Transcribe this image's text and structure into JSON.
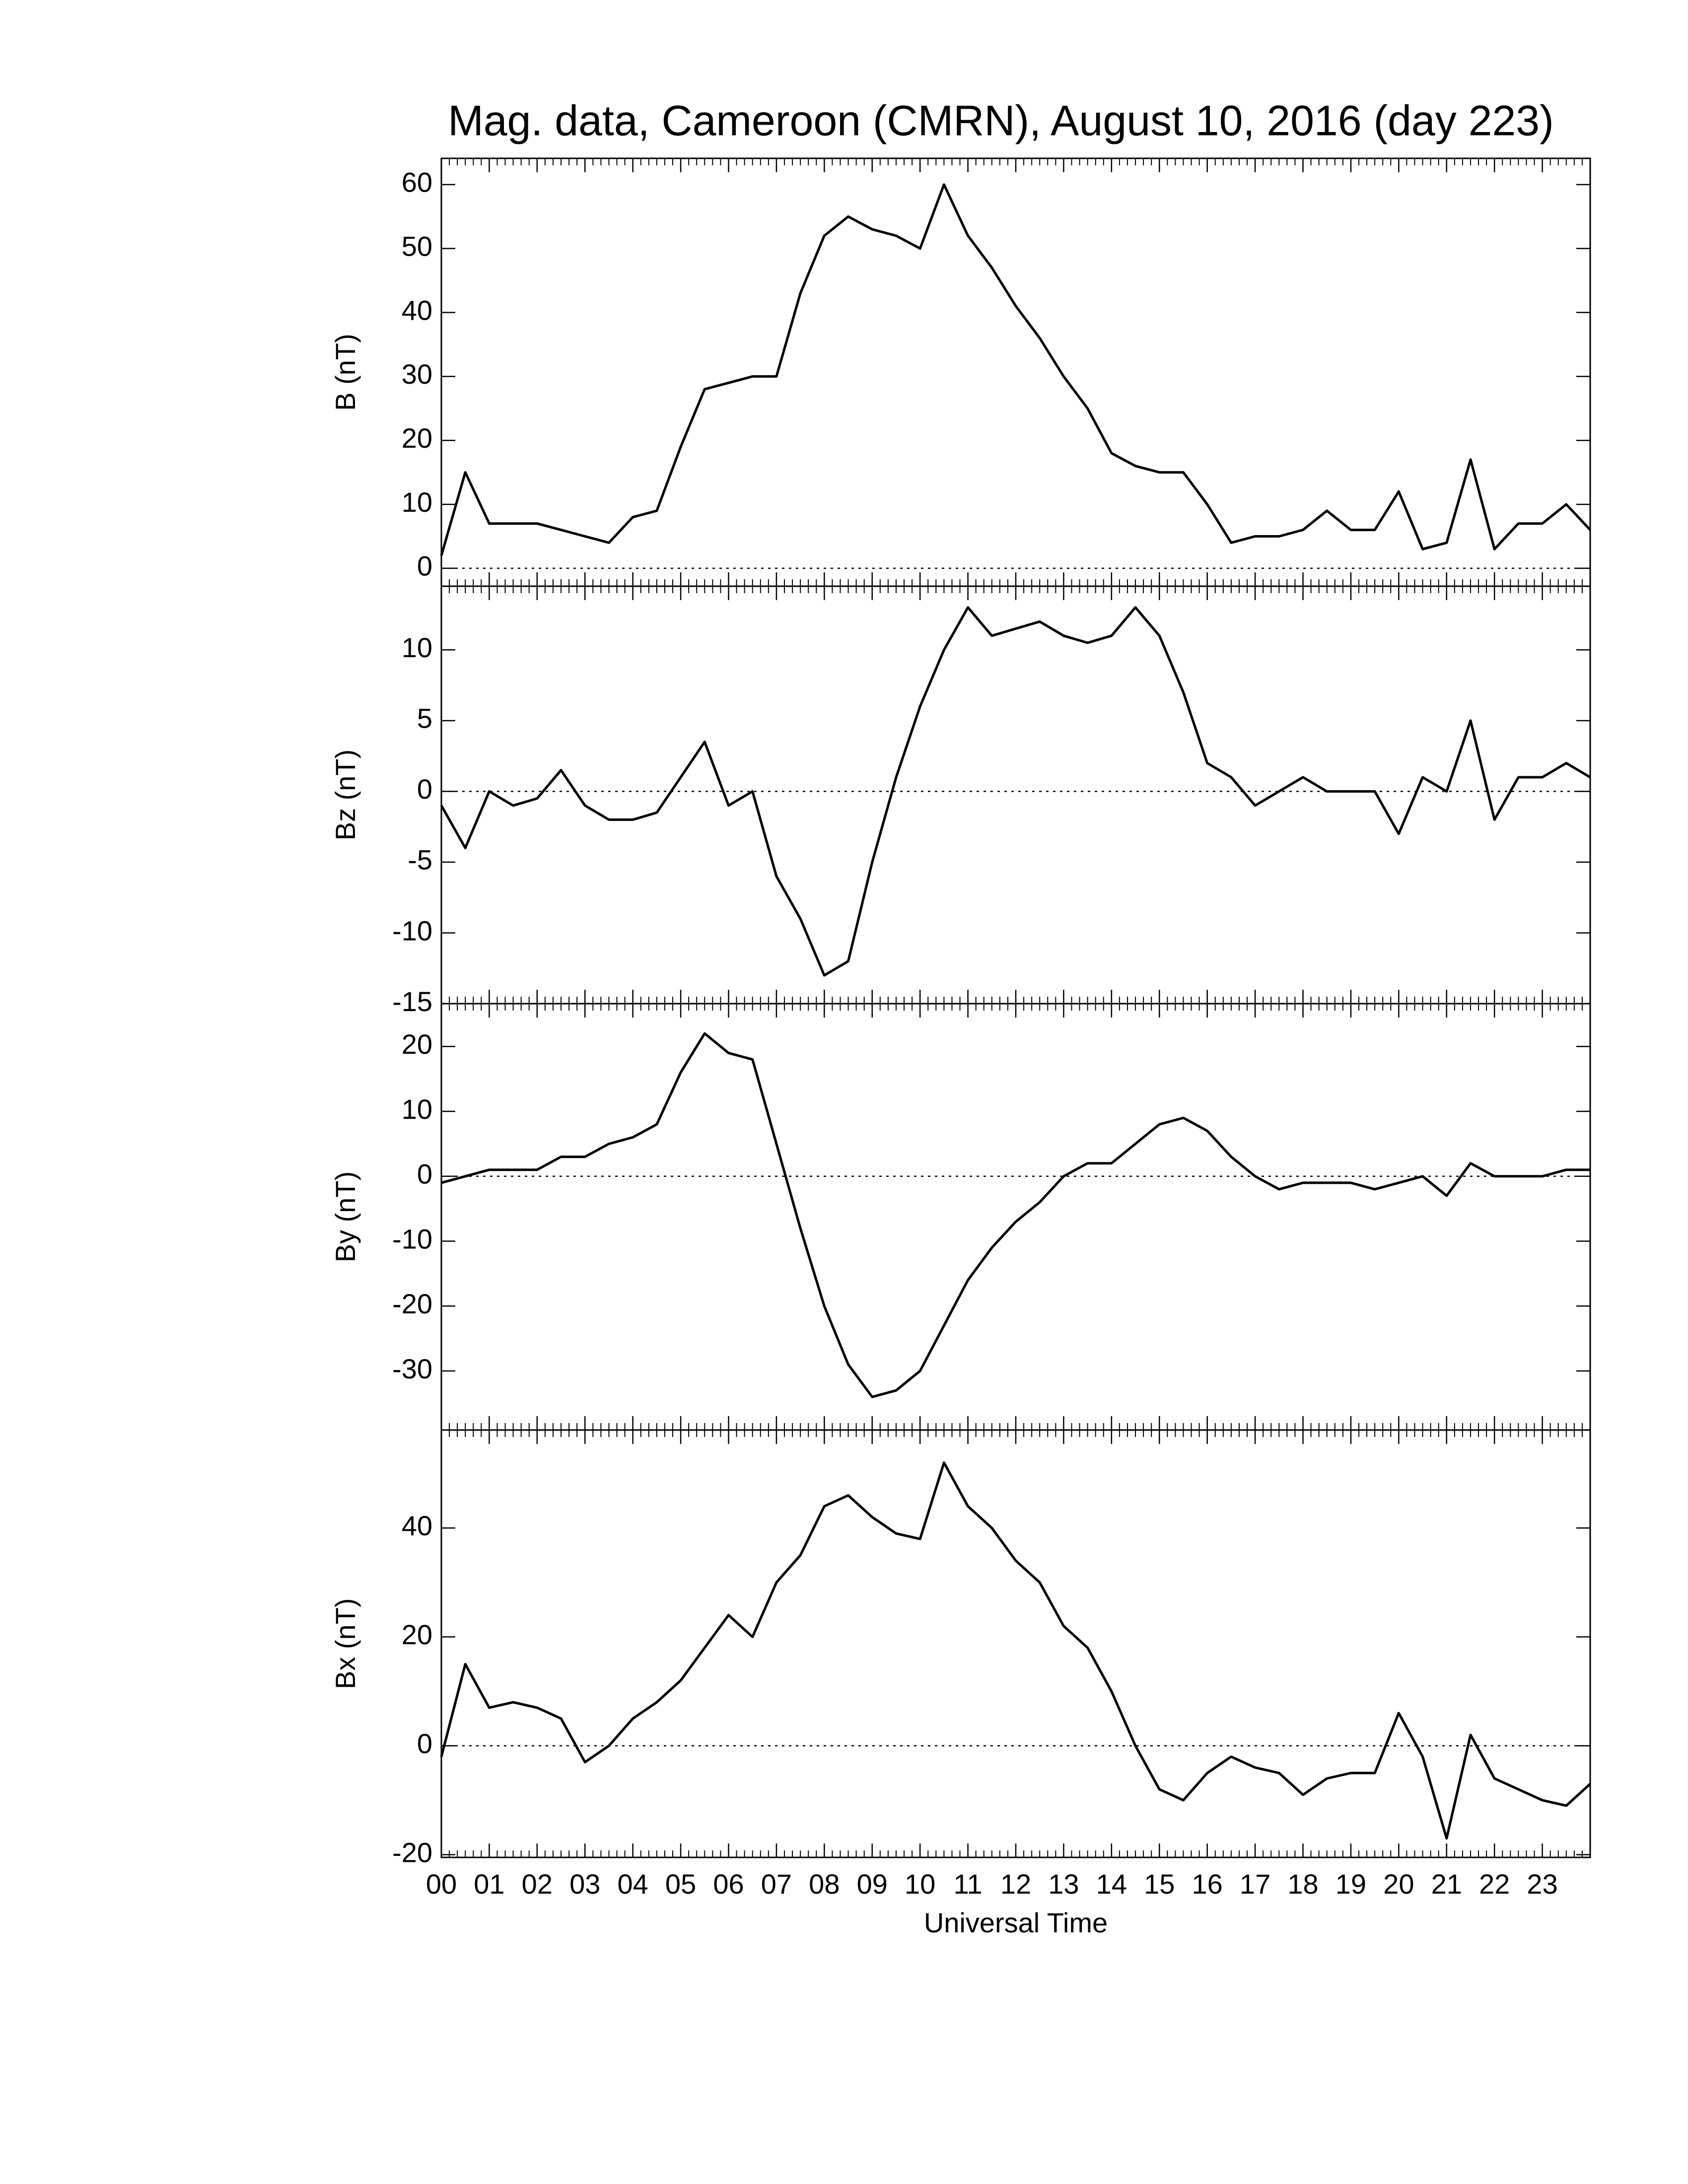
{
  "chart_data": [
    {
      "type": "line",
      "title": "Mag. data, Cameroon (CMRN), August 10, 2016 (day 223)",
      "ylabel": "B (nT)",
      "xlim": [
        0,
        24
      ],
      "xticks": [
        0,
        1,
        2,
        3,
        4,
        5,
        6,
        7,
        8,
        9,
        10,
        11,
        12,
        13,
        14,
        15,
        16,
        17,
        18,
        19,
        20,
        21,
        22,
        23
      ],
      "ylim": [
        -2.8,
        64.1
      ],
      "yticks": [
        0,
        10,
        20,
        30,
        40,
        50,
        60
      ],
      "hline": 0,
      "x": [
        0,
        0.5,
        1,
        1.5,
        2,
        2.5,
        3,
        3.5,
        4,
        4.5,
        5,
        5.5,
        6,
        6.5,
        7,
        7.5,
        8,
        8.5,
        9,
        9.5,
        10,
        10.5,
        11,
        11.5,
        12,
        12.5,
        13,
        13.5,
        14,
        14.5,
        15,
        15.5,
        16,
        16.5,
        17,
        17.5,
        18,
        18.5,
        19,
        19.5,
        20,
        20.5,
        21,
        21.5,
        22,
        22.5,
        23,
        23.5,
        24
      ],
      "series": [
        {
          "color": "#000000",
          "values": [
            2,
            15,
            7,
            7,
            7,
            6,
            5,
            4,
            8,
            9,
            19,
            28,
            29,
            30,
            30,
            43,
            52,
            55,
            53,
            52,
            50,
            60,
            52,
            47,
            41,
            36,
            30,
            25,
            18,
            16,
            15,
            15,
            10,
            4,
            5,
            5,
            6,
            9,
            6,
            6,
            12,
            3,
            4,
            17,
            3,
            7,
            7,
            10,
            6
          ]
        }
      ]
    },
    {
      "type": "line",
      "ylabel": "Bz (nT)",
      "xlim": [
        0,
        24
      ],
      "xticks": [
        0,
        1,
        2,
        3,
        4,
        5,
        6,
        7,
        8,
        9,
        10,
        11,
        12,
        13,
        14,
        15,
        16,
        17,
        18,
        19,
        20,
        21,
        22,
        23
      ],
      "ylim": [
        -15,
        14.5
      ],
      "yticks": [
        -15,
        -10,
        -5,
        0,
        5,
        10
      ],
      "hline": 0,
      "x": [
        0,
        0.5,
        1,
        1.5,
        2,
        2.5,
        3,
        3.5,
        4,
        4.5,
        5,
        5.5,
        6,
        6.5,
        7,
        7.5,
        8,
        8.5,
        9,
        9.5,
        10,
        10.5,
        11,
        11.5,
        12,
        12.5,
        13,
        13.5,
        14,
        14.5,
        15,
        15.5,
        16,
        16.5,
        17,
        17.5,
        18,
        18.5,
        19,
        19.5,
        20,
        20.5,
        21,
        21.5,
        22,
        22.5,
        23,
        23.5,
        24
      ],
      "series": [
        {
          "color": "#000000",
          "values": [
            -1,
            -4,
            0,
            -1,
            -0.5,
            1.5,
            -1,
            -2,
            -2,
            -1.5,
            1,
            3.5,
            -1,
            0,
            -6,
            -9,
            -13,
            -12,
            -5,
            1,
            6,
            10,
            13,
            11,
            11.5,
            12,
            11,
            10.5,
            11,
            13,
            11,
            7,
            2,
            1,
            -1,
            0,
            1,
            0,
            0,
            0,
            -3,
            1,
            0,
            5,
            -2,
            1,
            1,
            2,
            1
          ]
        }
      ]
    },
    {
      "type": "line",
      "ylabel": "By (nT)",
      "xlim": [
        0,
        24
      ],
      "xticks": [
        0,
        1,
        2,
        3,
        4,
        5,
        6,
        7,
        8,
        9,
        10,
        11,
        12,
        13,
        14,
        15,
        16,
        17,
        18,
        19,
        20,
        21,
        22,
        23
      ],
      "ylim": [
        -39.1,
        26.6
      ],
      "yticks": [
        -30,
        -20,
        -10,
        0,
        10,
        20
      ],
      "hline": 0,
      "x": [
        0,
        0.5,
        1,
        1.5,
        2,
        2.5,
        3,
        3.5,
        4,
        4.5,
        5,
        5.5,
        6,
        6.5,
        7,
        7.5,
        8,
        8.5,
        9,
        9.5,
        10,
        10.5,
        11,
        11.5,
        12,
        12.5,
        13,
        13.5,
        14,
        14.5,
        15,
        15.5,
        16,
        16.5,
        17,
        17.5,
        18,
        18.5,
        19,
        19.5,
        20,
        20.5,
        21,
        21.5,
        22,
        22.5,
        23,
        23.5,
        24
      ],
      "series": [
        {
          "color": "#000000",
          "values": [
            -1,
            0,
            1,
            1,
            1,
            3,
            3,
            5,
            6,
            8,
            16,
            22,
            19,
            18,
            5,
            -8,
            -20,
            -29,
            -34,
            -33,
            -30,
            -23,
            -16,
            -11,
            -7,
            -4,
            0,
            2,
            2,
            5,
            8,
            9,
            7,
            3,
            0,
            -2,
            -1,
            -1,
            -1,
            -2,
            -1,
            0,
            -3,
            2,
            0,
            0,
            0,
            1,
            1
          ]
        }
      ]
    },
    {
      "type": "line",
      "ylabel": "Bx (nT)",
      "xlabel": "Universal Time",
      "xlim": [
        0,
        24
      ],
      "xticks": [
        {
          "value": 0,
          "label": "00"
        },
        {
          "value": 1,
          "label": "01"
        },
        {
          "value": 2,
          "label": "02"
        },
        {
          "value": 3,
          "label": "03"
        },
        {
          "value": 4,
          "label": "04"
        },
        {
          "value": 5,
          "label": "05"
        },
        {
          "value": 6,
          "label": "06"
        },
        {
          "value": 7,
          "label": "07"
        },
        {
          "value": 8,
          "label": "08"
        },
        {
          "value": 9,
          "label": "09"
        },
        10,
        11,
        12,
        13,
        14,
        15,
        16,
        17,
        18,
        19,
        20,
        21,
        22,
        23
      ],
      "ylim": [
        -20.5,
        58
      ],
      "yticks": [
        -20,
        0,
        20,
        40
      ],
      "hline": 0,
      "x": [
        0,
        0.5,
        1,
        1.5,
        2,
        2.5,
        3,
        3.5,
        4,
        4.5,
        5,
        5.5,
        6,
        6.5,
        7,
        7.5,
        8,
        8.5,
        9,
        9.5,
        10,
        10.5,
        11,
        11.5,
        12,
        12.5,
        13,
        13.5,
        14,
        14.5,
        15,
        15.5,
        16,
        16.5,
        17,
        17.5,
        18,
        18.5,
        19,
        19.5,
        20,
        20.5,
        21,
        21.5,
        22,
        22.5,
        23,
        23.5,
        24
      ],
      "series": [
        {
          "color": "#000000",
          "values": [
            -2,
            15,
            7,
            8,
            7,
            5,
            -3,
            0,
            5,
            8,
            12,
            18,
            24,
            20,
            30,
            35,
            44,
            46,
            42,
            39,
            38,
            52,
            44,
            40,
            34,
            30,
            22,
            18,
            10,
            0,
            -8,
            -10,
            -5,
            -2,
            -4,
            -5,
            -9,
            -6,
            -5,
            -5,
            6,
            -2,
            -17,
            2,
            -6,
            -8,
            -10,
            -11,
            -7
          ]
        }
      ]
    }
  ]
}
